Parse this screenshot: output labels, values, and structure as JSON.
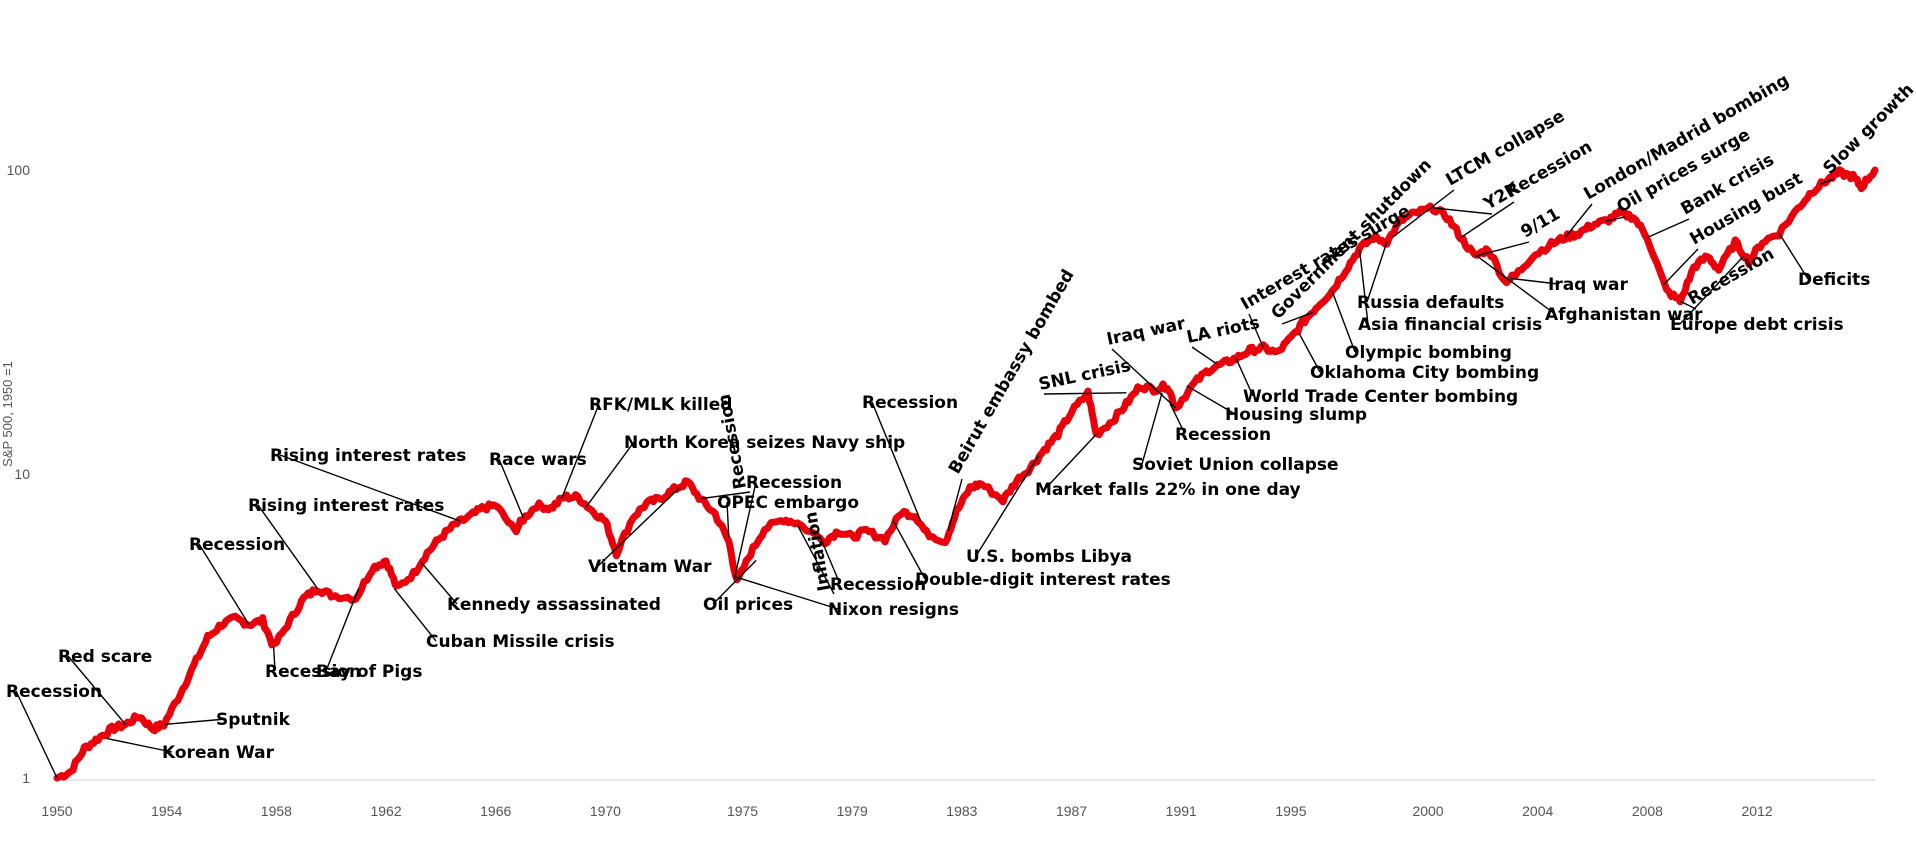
{
  "chart_data": {
    "type": "line",
    "title": "",
    "xlabel": "",
    "ylabel": "S&P 500, 1950 =1",
    "yscale": "log",
    "ylim": [
      1,
      160
    ],
    "xlim": [
      1950,
      2016.3
    ],
    "grid": false,
    "line_color": "#e8000b",
    "x_ticks": [
      "1950",
      "1954",
      "1958",
      "1962",
      "1966",
      "1970",
      "1975",
      "1979",
      "1983",
      "1987",
      "1991",
      "1995",
      "2000",
      "2004",
      "2008",
      "2012"
    ],
    "y_ticks": [
      "1",
      "10",
      "100"
    ],
    "series": [
      {
        "name": "",
        "points": [
          [
            1950.0,
            1.0
          ],
          [
            1950.5,
            1.05
          ],
          [
            1951.0,
            1.25
          ],
          [
            1951.5,
            1.35
          ],
          [
            1952.0,
            1.45
          ],
          [
            1952.5,
            1.5
          ],
          [
            1953.0,
            1.6
          ],
          [
            1953.5,
            1.45
          ],
          [
            1953.9,
            1.5
          ],
          [
            1954.5,
            1.9
          ],
          [
            1955.0,
            2.35
          ],
          [
            1955.5,
            2.9
          ],
          [
            1956.0,
            3.2
          ],
          [
            1956.5,
            3.35
          ],
          [
            1957.0,
            3.2
          ],
          [
            1957.5,
            3.3
          ],
          [
            1957.9,
            2.7
          ],
          [
            1958.5,
            3.3
          ],
          [
            1959.0,
            3.9
          ],
          [
            1959.5,
            4.2
          ],
          [
            1960.0,
            4.0
          ],
          [
            1960.9,
            3.9
          ],
          [
            1961.5,
            4.9
          ],
          [
            1962.0,
            5.2
          ],
          [
            1962.4,
            4.2
          ],
          [
            1963.0,
            4.7
          ],
          [
            1963.5,
            5.5
          ],
          [
            1964.0,
            6.2
          ],
          [
            1964.5,
            6.8
          ],
          [
            1965.0,
            7.2
          ],
          [
            1965.5,
            7.7
          ],
          [
            1966.0,
            7.9
          ],
          [
            1966.7,
            6.5
          ],
          [
            1967.0,
            7.1
          ],
          [
            1967.5,
            7.9
          ],
          [
            1968.0,
            7.7
          ],
          [
            1968.5,
            8.4
          ],
          [
            1969.0,
            8.4
          ],
          [
            1969.5,
            7.6
          ],
          [
            1970.0,
            7.0
          ],
          [
            1970.4,
            5.5
          ],
          [
            1971.0,
            7.2
          ],
          [
            1971.5,
            8.0
          ],
          [
            1972.0,
            8.3
          ],
          [
            1972.5,
            8.9
          ],
          [
            1973.0,
            9.4
          ],
          [
            1973.5,
            8.2
          ],
          [
            1974.0,
            7.4
          ],
          [
            1974.5,
            6.0
          ],
          [
            1974.8,
            4.4
          ],
          [
            1975.3,
            5.5
          ],
          [
            1975.8,
            6.6
          ],
          [
            1976.5,
            7.1
          ],
          [
            1977.0,
            6.9
          ],
          [
            1978.0,
            6.0
          ],
          [
            1978.5,
            6.5
          ],
          [
            1979.0,
            6.2
          ],
          [
            1979.5,
            6.5
          ],
          [
            1980.2,
            6.1
          ],
          [
            1980.8,
            7.5
          ],
          [
            1981.3,
            7.3
          ],
          [
            1981.7,
            6.4
          ],
          [
            1982.4,
            6.0
          ],
          [
            1982.8,
            7.5
          ],
          [
            1983.3,
            9.0
          ],
          [
            1983.7,
            9.3
          ],
          [
            1984.5,
            8.2
          ],
          [
            1985.0,
            9.5
          ],
          [
            1985.5,
            10.5
          ],
          [
            1986.0,
            12.0
          ],
          [
            1986.5,
            13.5
          ],
          [
            1987.0,
            16.0
          ],
          [
            1987.6,
            18.5
          ],
          [
            1987.9,
            13.5
          ],
          [
            1988.5,
            15.0
          ],
          [
            1989.0,
            17.0
          ],
          [
            1989.5,
            19.5
          ],
          [
            1990.0,
            19.0
          ],
          [
            1990.5,
            19.5
          ],
          [
            1990.8,
            16.5
          ],
          [
            1991.5,
            20.0
          ],
          [
            1992.0,
            22.0
          ],
          [
            1992.5,
            23.0
          ],
          [
            1993.0,
            24.0
          ],
          [
            1993.5,
            25.5
          ],
          [
            1994.0,
            26.0
          ],
          [
            1994.5,
            25.0
          ],
          [
            1995.0,
            28.0
          ],
          [
            1995.5,
            32.0
          ],
          [
            1996.0,
            36.0
          ],
          [
            1996.5,
            40.0
          ],
          [
            1997.0,
            47.0
          ],
          [
            1997.5,
            55.0
          ],
          [
            1998.0,
            60.0
          ],
          [
            1998.5,
            58.0
          ],
          [
            1999.0,
            68.0
          ],
          [
            1999.5,
            72.0
          ],
          [
            2000.2,
            75.0
          ],
          [
            2000.7,
            70.0
          ],
          [
            2001.2,
            60.0
          ],
          [
            2001.7,
            52.0
          ],
          [
            2002.2,
            55.0
          ],
          [
            2002.8,
            43.0
          ],
          [
            2003.2,
            45.0
          ],
          [
            2003.8,
            52.0
          ],
          [
            2004.5,
            57.0
          ],
          [
            2005.0,
            60.0
          ],
          [
            2005.5,
            62.0
          ],
          [
            2006.0,
            66.0
          ],
          [
            2006.5,
            68.0
          ],
          [
            2007.0,
            72.0
          ],
          [
            2007.5,
            70.0
          ],
          [
            2008.0,
            60.0
          ],
          [
            2008.7,
            40.0
          ],
          [
            2009.2,
            37.0
          ],
          [
            2009.7,
            48.0
          ],
          [
            2010.2,
            52.0
          ],
          [
            2010.6,
            47.0
          ],
          [
            2011.2,
            58.0
          ],
          [
            2011.7,
            50.0
          ],
          [
            2012.2,
            58.0
          ],
          [
            2012.8,
            62.0
          ],
          [
            2013.5,
            75.0
          ],
          [
            2014.0,
            85.0
          ],
          [
            2014.5,
            92.0
          ],
          [
            2015.0,
            98.0
          ],
          [
            2015.5,
            95.0
          ],
          [
            2015.8,
            88.0
          ],
          [
            2016.3,
            100.0
          ]
        ]
      }
    ],
    "annotations": [
      {
        "text": "Recession",
        "x": 1950.0,
        "y": 1.0
      },
      {
        "text": "Red scare",
        "x": 1952.5,
        "y": 1.5
      },
      {
        "text": "Korean War",
        "x": 1951.8,
        "y": 1.35
      },
      {
        "text": "Sputnik",
        "x": 1953.9,
        "y": 1.5
      },
      {
        "text": "Recession",
        "x": 1957.0,
        "y": 3.2
      },
      {
        "text": "Recession",
        "x": 1957.9,
        "y": 2.7
      },
      {
        "text": "Rising interest rates",
        "x": 1959.5,
        "y": 4.2
      },
      {
        "text": "Bay of Pigs",
        "x": 1961.0,
        "y": 4.2
      },
      {
        "text": "Cuban Missile crisis",
        "x": 1962.3,
        "y": 4.2
      },
      {
        "text": "Kennedy assassinated",
        "x": 1963.3,
        "y": 5.1
      },
      {
        "text": "Rising interest rates",
        "x": 1964.7,
        "y": 7.0
      },
      {
        "text": "Race wars",
        "x": 1967.0,
        "y": 7.2
      },
      {
        "text": "RFK/MLK killed",
        "x": 1968.4,
        "y": 8.3
      },
      {
        "text": "North Korea seizes Navy ship",
        "x": 1969.3,
        "y": 7.8
      },
      {
        "text": "Vietnam War",
        "x": 1972.7,
        "y": 9.0
      },
      {
        "text": "Recession",
        "x": 1974.7,
        "y": 4.5
      },
      {
        "text": "OPEC embargo",
        "x": 1974.5,
        "y": 6.2
      },
      {
        "text": "Recession",
        "x": 1973.5,
        "y": 8.3
      },
      {
        "text": "Oil prices",
        "x": 1975.5,
        "y": 5.2
      },
      {
        "text": "Recession",
        "x": 1977.8,
        "y": 6.3
      },
      {
        "text": "Nixon resigns",
        "x": 1974.7,
        "y": 4.6
      },
      {
        "text": "Inflation",
        "x": 1977.0,
        "y": 6.8
      },
      {
        "text": "Double-digit interest rates",
        "x": 1980.5,
        "y": 7.0
      },
      {
        "text": "Recession",
        "x": 1981.5,
        "y": 7.0
      },
      {
        "text": "Beirut embassy bombed",
        "x": 1982.5,
        "y": 6.5
      },
      {
        "text": "U.S. bombs Libya",
        "x": 1985.8,
        "y": 11.5
      },
      {
        "text": "Market falls 22% in one day",
        "x": 1987.9,
        "y": 13.5
      },
      {
        "text": "SNL crisis",
        "x": 1989.0,
        "y": 18.5
      },
      {
        "text": "Iraq war",
        "x": 1990.8,
        "y": 16.5
      },
      {
        "text": "Soviet Union collapse",
        "x": 1990.3,
        "y": 18.5
      },
      {
        "text": "Recession",
        "x": 1990.6,
        "y": 17.0
      },
      {
        "text": "LA riots",
        "x": 1992.3,
        "y": 23.0
      },
      {
        "text": "Housing slump",
        "x": 1991.2,
        "y": 19.5
      },
      {
        "text": "World Trade Center bombing",
        "x": 1993.0,
        "y": 24.0
      },
      {
        "text": "Interest rates surge",
        "x": 1994.0,
        "y": 26.0
      },
      {
        "text": "Government shutdown",
        "x": 1995.8,
        "y": 34.0
      },
      {
        "text": "Oklahoma City bombing",
        "x": 1995.3,
        "y": 29.0
      },
      {
        "text": "Olympic bombing",
        "x": 1996.5,
        "y": 40.0
      },
      {
        "text": "Asia financial crisis",
        "x": 1997.5,
        "y": 55.0
      },
      {
        "text": "Russia defaults",
        "x": 1998.5,
        "y": 58.0
      },
      {
        "text": "LTCM collapse",
        "x": 1998.7,
        "y": 60.0
      },
      {
        "text": "Y2K",
        "x": 2000.2,
        "y": 75.0
      },
      {
        "text": "Recession",
        "x": 2001.2,
        "y": 60.0
      },
      {
        "text": "9/11",
        "x": 2001.7,
        "y": 52.0
      },
      {
        "text": "Afghanistan war",
        "x": 2001.8,
        "y": 52.0
      },
      {
        "text": "Iraq war",
        "x": 2003.0,
        "y": 44.0
      },
      {
        "text": "London/Madrid bombing",
        "x": 2005.0,
        "y": 60.0
      },
      {
        "text": "Oil prices surge",
        "x": 2006.5,
        "y": 68.0
      },
      {
        "text": "Bank crisis",
        "x": 2008.0,
        "y": 60.0
      },
      {
        "text": "Housing bust",
        "x": 2008.6,
        "y": 42.0
      },
      {
        "text": "Recession",
        "x": 2009.2,
        "y": 37.0
      },
      {
        "text": "Europe debt crisis",
        "x": 2011.5,
        "y": 52.0
      },
      {
        "text": "Deficits",
        "x": 2012.8,
        "y": 62.0
      },
      {
        "text": "Slow growth",
        "x": 2014.3,
        "y": 90.0
      }
    ]
  }
}
